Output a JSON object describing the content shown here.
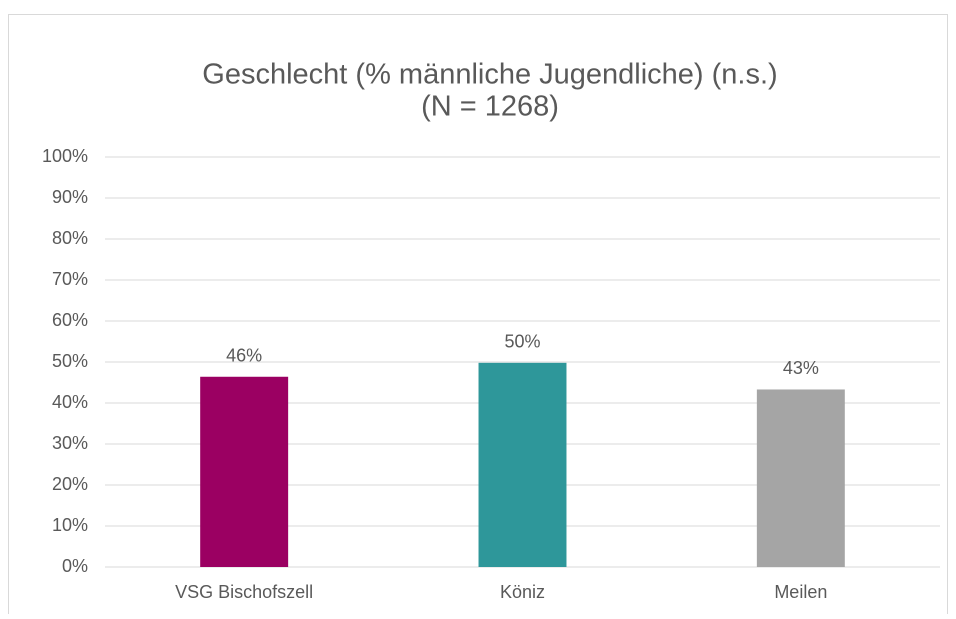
{
  "chart_data": {
    "type": "bar",
    "title": [
      "Geschlecht (% männliche Jugendliche) (n.s.)",
      "(N = 1268)"
    ],
    "categories": [
      "VSG Bischofszell",
      "Köniz",
      "Meilen"
    ],
    "values": [
      46.4,
      49.8,
      43.3
    ],
    "value_labels": [
      "46%",
      "50%",
      "43%"
    ],
    "colors": [
      "#9b0062",
      "#2e979a",
      "#a5a5a5"
    ],
    "ylim": [
      0,
      100
    ],
    "yticks": [
      {
        "value": 0,
        "label": "0%"
      },
      {
        "value": 10,
        "label": "10%"
      },
      {
        "value": 20,
        "label": "20%"
      },
      {
        "value": 30,
        "label": "30%"
      },
      {
        "value": 40,
        "label": "40%"
      },
      {
        "value": 50,
        "label": "50%"
      },
      {
        "value": 60,
        "label": "60%"
      },
      {
        "value": 70,
        "label": "70%"
      },
      {
        "value": 80,
        "label": "80%"
      },
      {
        "value": 90,
        "label": "90%"
      },
      {
        "value": 100,
        "label": "100%"
      }
    ],
    "grid": true
  }
}
